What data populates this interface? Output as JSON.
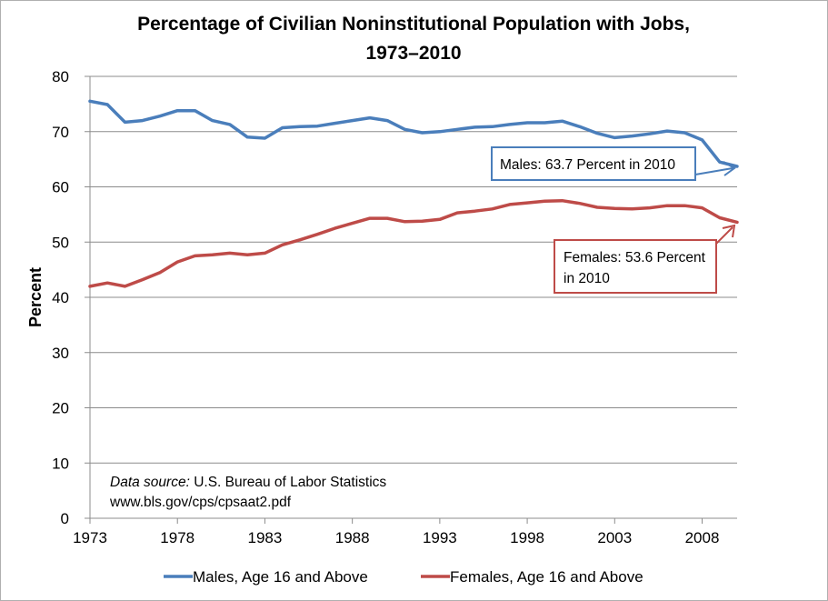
{
  "chart_data": {
    "type": "line",
    "title_line1": "Percentage of Civilian Noninstitutional Population with Jobs,",
    "title_line2": "1973–2010",
    "ylabel": "Percent",
    "xlabel": "",
    "ylim": [
      0,
      80
    ],
    "yticks": [
      "0",
      "10",
      "20",
      "30",
      "40",
      "50",
      "60",
      "70",
      "80"
    ],
    "xlim": [
      1973,
      2010
    ],
    "xticks": [
      "1973",
      "1978",
      "1983",
      "1988",
      "1993",
      "1998",
      "2003",
      "2008"
    ],
    "grid": "horizontal",
    "legend_position": "bottom",
    "x": [
      1973,
      1974,
      1975,
      1976,
      1977,
      1978,
      1979,
      1980,
      1981,
      1982,
      1983,
      1984,
      1985,
      1986,
      1987,
      1988,
      1989,
      1990,
      1991,
      1992,
      1993,
      1994,
      1995,
      1996,
      1997,
      1998,
      1999,
      2000,
      2001,
      2002,
      2003,
      2004,
      2005,
      2006,
      2007,
      2008,
      2009,
      2010
    ],
    "series": [
      {
        "name": "Males, Age 16 and Above",
        "color": "#4a7ebb",
        "values": [
          75.5,
          74.9,
          71.7,
          72.0,
          72.8,
          73.8,
          73.8,
          72.0,
          71.3,
          69.0,
          68.8,
          70.7,
          70.9,
          71.0,
          71.5,
          72.0,
          72.5,
          72.0,
          70.4,
          69.8,
          70.0,
          70.4,
          70.8,
          70.9,
          71.3,
          71.6,
          71.6,
          71.9,
          70.9,
          69.7,
          68.9,
          69.2,
          69.6,
          70.1,
          69.8,
          68.5,
          64.5,
          63.7
        ]
      },
      {
        "name": "Females, Age 16 and Above",
        "color": "#be4b48",
        "values": [
          42.0,
          42.6,
          42.0,
          43.2,
          44.5,
          46.4,
          47.5,
          47.7,
          48.0,
          47.7,
          48.0,
          49.5,
          50.4,
          51.4,
          52.5,
          53.4,
          54.3,
          54.3,
          53.7,
          53.8,
          54.1,
          55.3,
          55.6,
          56.0,
          56.8,
          57.1,
          57.4,
          57.5,
          57.0,
          56.3,
          56.1,
          56.0,
          56.2,
          56.6,
          56.6,
          56.2,
          54.4,
          53.6
        ]
      }
    ],
    "annotations": {
      "males_line1": "Males: 63.7 Percent in 2010",
      "females_line1": "Females: 53.6 Percent",
      "females_line2": "in 2010",
      "source_label": "Data source:",
      "source_text": " U.S. Bureau of Labor Statistics",
      "source_url": "www.bls.gov/cps/cpsaat2.pdf"
    }
  }
}
